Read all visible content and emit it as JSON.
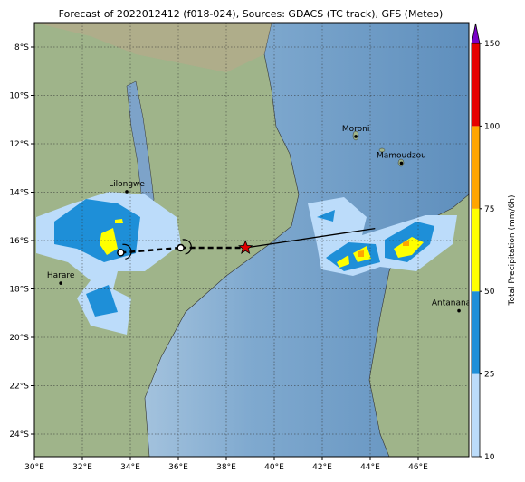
{
  "map": {
    "title": "Forecast of 2022012412 (f018-024), Sources: GDACS (TC track), GFS (Meteo)",
    "lon_ticks": [
      {
        "value": 30,
        "label": "30°E"
      },
      {
        "value": 32,
        "label": "32°E"
      },
      {
        "value": 34,
        "label": "34°E"
      },
      {
        "value": 36,
        "label": "36°E"
      },
      {
        "value": 38,
        "label": "38°E"
      },
      {
        "value": 40,
        "label": "40°E"
      },
      {
        "value": 42,
        "label": "42°E"
      },
      {
        "value": 44,
        "label": "44°E"
      },
      {
        "value": 46,
        "label": "46°E"
      }
    ],
    "lat_ticks": [
      {
        "value": -8,
        "label": "8°S"
      },
      {
        "value": -10,
        "label": "10°S"
      },
      {
        "value": -12,
        "label": "12°S"
      },
      {
        "value": -14,
        "label": "14°S"
      },
      {
        "value": -16,
        "label": "16°S"
      },
      {
        "value": -18,
        "label": "18°S"
      },
      {
        "value": -20,
        "label": "20°S"
      },
      {
        "value": -22,
        "label": "22°S"
      },
      {
        "value": -24,
        "label": "24°S"
      }
    ],
    "places": [
      {
        "label": "Lilongwe",
        "lon": 33.85,
        "lat": -13.98
      },
      {
        "label": "Harare",
        "lon": 31.1,
        "lat": -17.76
      },
      {
        "label": "Moroni",
        "lon": 43.4,
        "lat": -11.7
      },
      {
        "label": "Mamoudzou",
        "lon": 45.3,
        "lat": -12.8
      },
      {
        "label": "Antananarivo",
        "lon": 47.7,
        "lat": -18.9
      }
    ],
    "track": {
      "lon": [
        33.6,
        36.1,
        38.8,
        44.2
      ],
      "lat": [
        -16.5,
        -16.3,
        -16.3,
        -15.5
      ]
    },
    "colorbar": {
      "label": "Total Precipitation (mm/6h)",
      "ticks": [
        10,
        25,
        50,
        75,
        100,
        150
      ],
      "colors": [
        "#bcdcfa",
        "#1e8fd8",
        "#ffff00",
        "#ffa500",
        "#e60000"
      ],
      "extend_color": "#7a00c8"
    }
  }
}
